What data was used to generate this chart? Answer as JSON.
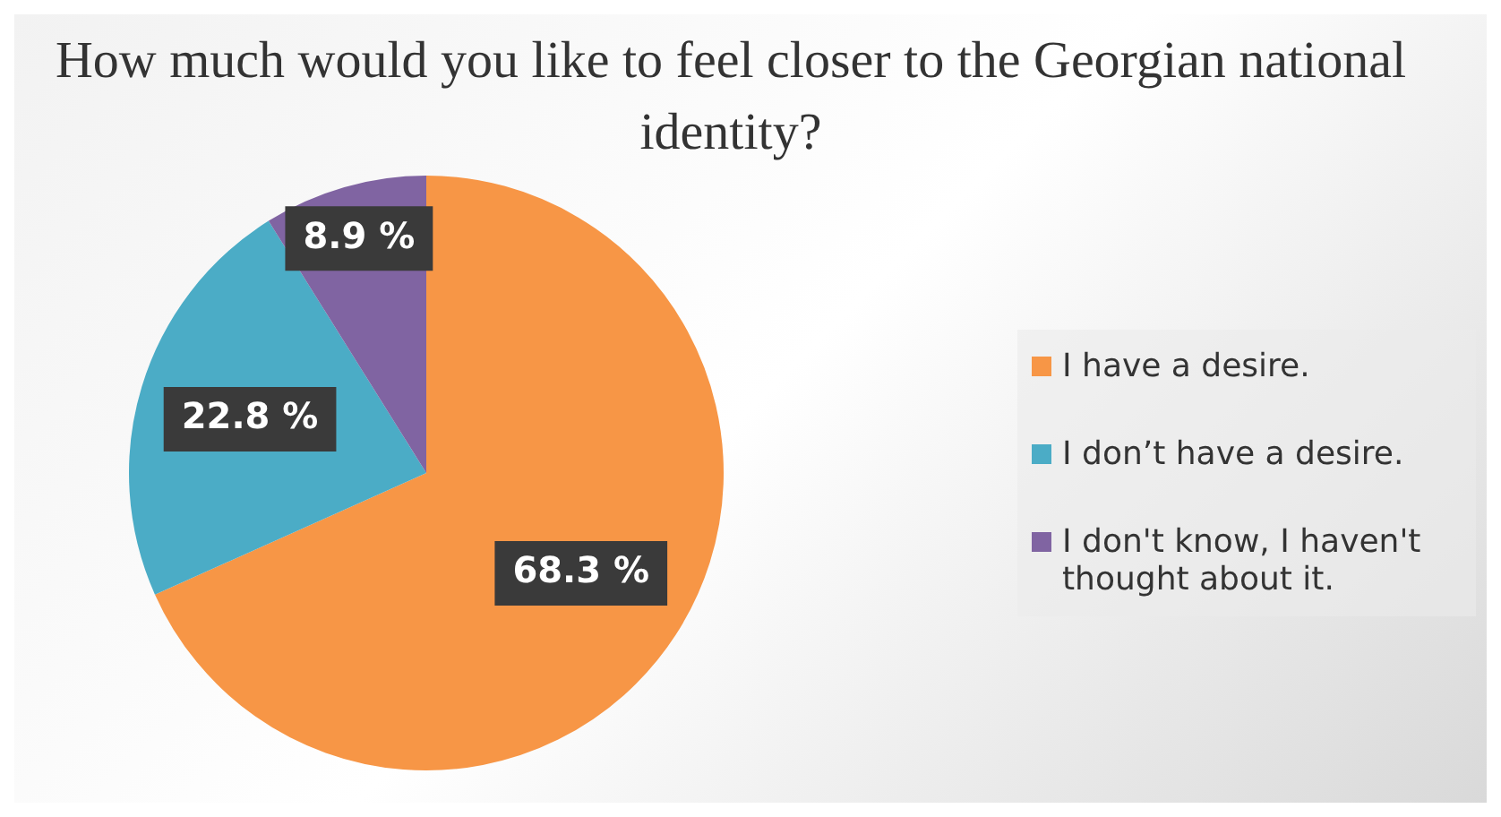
{
  "chart_data": {
    "type": "pie",
    "title": "How much would you like to feel closer to the Georgian national identity?",
    "categories": [
      "I have a desire.",
      "I don’t have a desire.",
      "I don't know, I haven't thought about it."
    ],
    "values": [
      68.3,
      22.8,
      8.9
    ],
    "colors": [
      "#f79646",
      "#4bacc6",
      "#8064a2"
    ],
    "value_labels": [
      "68.3 %",
      "22.8 %",
      "8.9 %"
    ],
    "legend": "right"
  }
}
